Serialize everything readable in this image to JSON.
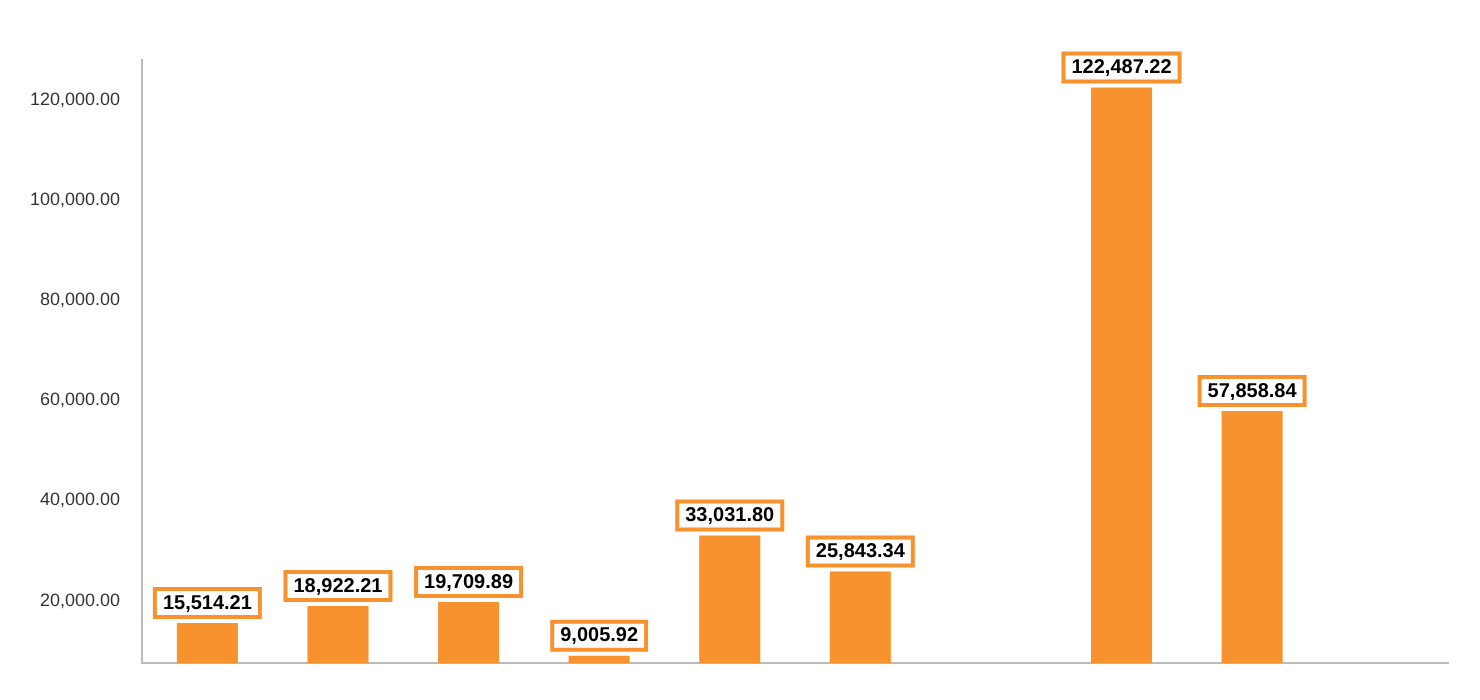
{
  "chart_data": {
    "type": "bar",
    "categories": [
      null,
      null,
      null,
      null,
      null,
      null,
      null,
      null,
      null,
      null
    ],
    "values": [
      15514.21,
      18922.21,
      19709.89,
      9005.92,
      33031.8,
      25843.34,
      null,
      122487.22,
      57858.84,
      null
    ],
    "value_labels": [
      "15,514.21",
      "18,922.21",
      "19,709.89",
      "9,005.92",
      "33,031.80",
      "25,843.34",
      null,
      "122,487.22",
      "57,858.84",
      null
    ],
    "color": "#f7922e",
    "ylim": [
      7500,
      128000
    ],
    "yticks": [
      {
        "value": 20000,
        "label": "20,000.00"
      },
      {
        "value": 40000,
        "label": "40,000.00"
      },
      {
        "value": 60000,
        "label": "60,000.00"
      },
      {
        "value": 80000,
        "label": "80,000.00"
      },
      {
        "value": 100000,
        "label": "100,000.00"
      },
      {
        "value": 120000,
        "label": "120,000.00"
      }
    ],
    "grid": false,
    "legend": false
  }
}
